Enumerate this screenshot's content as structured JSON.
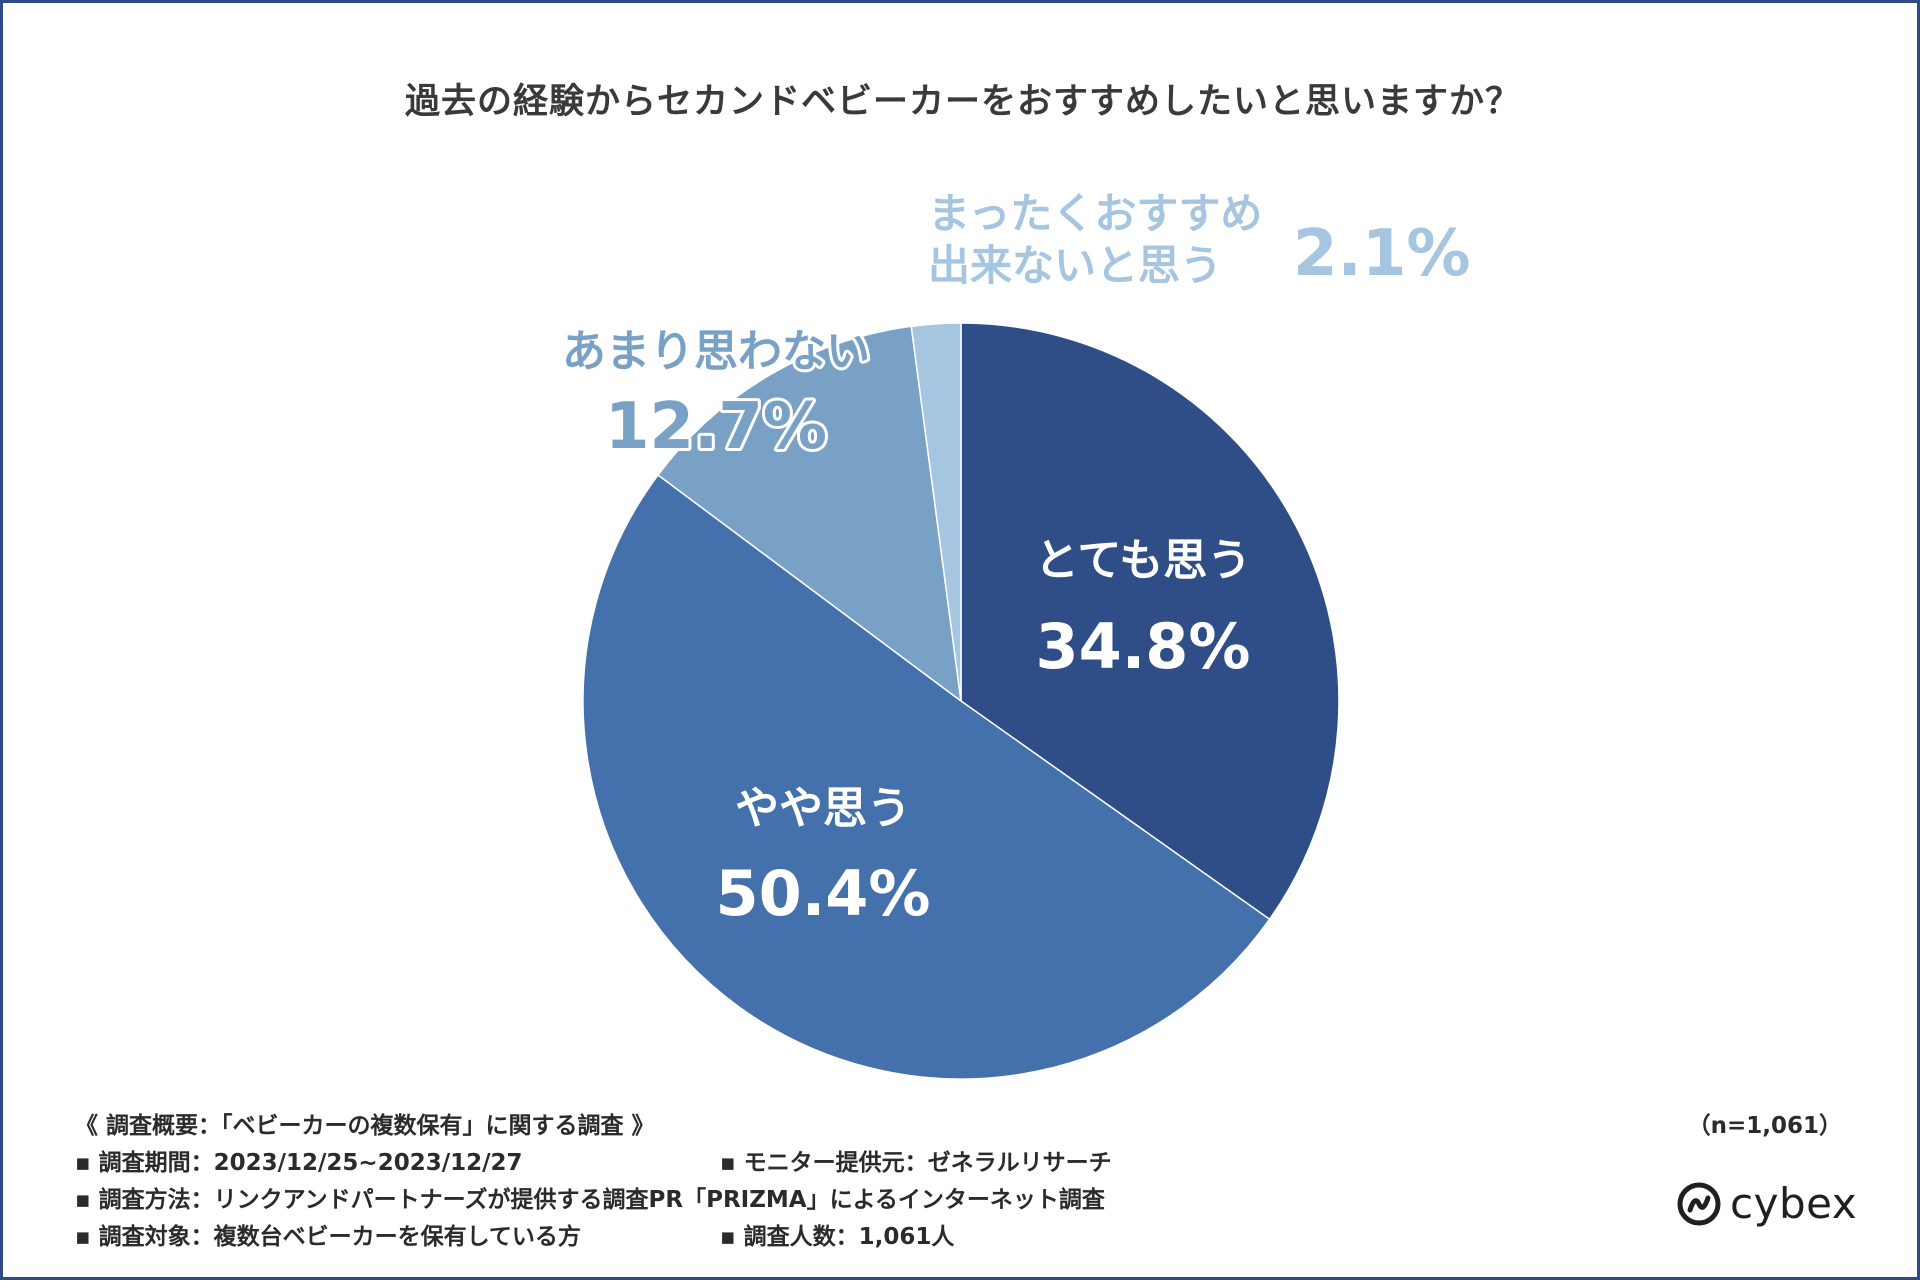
{
  "chart_data": {
    "type": "pie",
    "title": "過去の経験からセカンドベビーカーをおすすめしたいと思いますか？",
    "start": "12 o'clock",
    "direction": "clockwise",
    "slices": [
      {
        "label": "とても思う",
        "value": 34.8,
        "value_label": "34.8%",
        "color": "#2f4e87",
        "label_color": "#ffffff"
      },
      {
        "label": "やや思う",
        "value": 50.4,
        "value_label": "50.4%",
        "color": "#4471ab",
        "label_color": "#ffffff"
      },
      {
        "label": "あまり思わない",
        "value": 12.7,
        "value_label": "12.7%",
        "color": "#79a1c6",
        "label_color": "#79a1c6"
      },
      {
        "label_lines": [
          "まったくおすすめ",
          "出来ないと思う"
        ],
        "value": 2.1,
        "value_label": "2.1%",
        "color": "#a6c5e0",
        "label_color": "#a6c5e0"
      }
    ]
  },
  "survey": {
    "heading": "《 調査概要：「ベビーカーの複数保有」に関する調査 》",
    "period": "▪ 調査期間：2023/12/25~2023/12/27",
    "provider": "▪ モニター提供元：ゼネラルリサーチ",
    "method": "▪ 調査方法：リンクアンドパートナーズが提供する調査PR「PRIZMA」によるインターネット調査",
    "target": "▪ 調査対象：複数台ベビーカーを保有している方",
    "count": "▪ 調査人数：1,061人",
    "sample_size": "（n=1,061）"
  },
  "brand": {
    "name": "cybex",
    "icon": "cybex-logo-icon"
  },
  "colors": {
    "frame": "#2f4b85",
    "title": "#3a3a3a",
    "note": "#2b2b2b"
  }
}
